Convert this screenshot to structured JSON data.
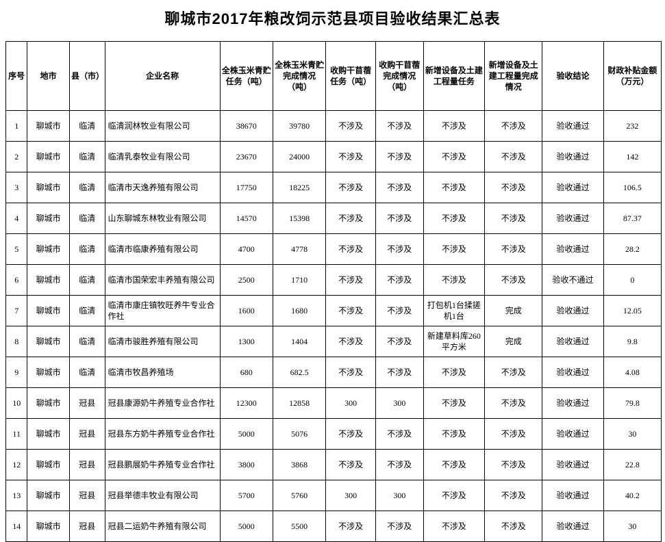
{
  "title": "聊城市2017年粮改饲示范县项目验收结果汇总表",
  "headers": {
    "idx": "序号",
    "city": "地市",
    "county": "县（市）",
    "enterprise": "企业名称",
    "silage_task": "全株玉米青贮任务（吨）",
    "silage_done": "全株玉米青贮完成情况（吨）",
    "hay_task": "收购干苜蓿任务（吨）",
    "hay_done": "收购干苜蓿完成情况（吨）",
    "equip_task": "新增设备及土建工程量任务",
    "equip_done": "新增设备及土建工程量完成情况",
    "result": "验收结论",
    "subsidy": "财政补贴金额（万元）"
  },
  "rows": [
    {
      "idx": "1",
      "city": "聊城市",
      "county": "临清",
      "name": "临清润林牧业有限公司",
      "silage_task": "38670",
      "silage_done": "39780",
      "hay_task": "不涉及",
      "hay_done": "不涉及",
      "equip_task": "不涉及",
      "equip_done": "不涉及",
      "result": "验收通过",
      "subsidy": "232"
    },
    {
      "idx": "2",
      "city": "聊城市",
      "county": "临清",
      "name": "临清乳泰牧业有限公司",
      "silage_task": "23670",
      "silage_done": "24000",
      "hay_task": "不涉及",
      "hay_done": "不涉及",
      "equip_task": "不涉及",
      "equip_done": "不涉及",
      "result": "验收通过",
      "subsidy": "142"
    },
    {
      "idx": "3",
      "city": "聊城市",
      "county": "临清",
      "name": "临清市天逸养殖有限公司",
      "silage_task": "17750",
      "silage_done": "18225",
      "hay_task": "不涉及",
      "hay_done": "不涉及",
      "equip_task": "不涉及",
      "equip_done": "不涉及",
      "result": "验收通过",
      "subsidy": "106.5"
    },
    {
      "idx": "4",
      "city": "聊城市",
      "county": "临清",
      "name": "山东聊城东林牧业有限公司",
      "silage_task": "14570",
      "silage_done": "15398",
      "hay_task": "不涉及",
      "hay_done": "不涉及",
      "equip_task": "不涉及",
      "equip_done": "不涉及",
      "result": "验收通过",
      "subsidy": "87.37"
    },
    {
      "idx": "5",
      "city": "聊城市",
      "county": "临清",
      "name": "临清市临康养殖有限公司",
      "silage_task": "4700",
      "silage_done": "4778",
      "hay_task": "不涉及",
      "hay_done": "不涉及",
      "equip_task": "不涉及",
      "equip_done": "不涉及",
      "result": "验收通过",
      "subsidy": "28.2"
    },
    {
      "idx": "6",
      "city": "聊城市",
      "county": "临清",
      "name": "临清市国荣宏丰养殖有限公司",
      "silage_task": "2500",
      "silage_done": "1710",
      "hay_task": "不涉及",
      "hay_done": "不涉及",
      "equip_task": "不涉及",
      "equip_done": "不涉及",
      "result": "验收不通过",
      "subsidy": "0"
    },
    {
      "idx": "7",
      "city": "聊城市",
      "county": "临清",
      "name": "临清市康庄镇牧旺养牛专业合作社",
      "silage_task": "1600",
      "silage_done": "1680",
      "hay_task": "不涉及",
      "hay_done": "不涉及",
      "equip_task": "打包机1台揉搓机1台",
      "equip_done": "完成",
      "result": "验收通过",
      "subsidy": "12.05"
    },
    {
      "idx": "8",
      "city": "聊城市",
      "county": "临清",
      "name": "临清市骏胜养殖有限公司",
      "silage_task": "1300",
      "silage_done": "1404",
      "hay_task": "不涉及",
      "hay_done": "不涉及",
      "equip_task": "新建草料库260平方米",
      "equip_done": "完成",
      "result": "验收通过",
      "subsidy": "9.8"
    },
    {
      "idx": "9",
      "city": "聊城市",
      "county": "临清",
      "name": "临清市牧昌养殖场",
      "silage_task": "680",
      "silage_done": "682.5",
      "hay_task": "不涉及",
      "hay_done": "不涉及",
      "equip_task": "不涉及",
      "equip_done": "不涉及",
      "result": "验收通过",
      "subsidy": "4.08"
    },
    {
      "idx": "10",
      "city": "聊城市",
      "county": "冠县",
      "name": "冠县康源奶牛养殖专业合作社",
      "silage_task": "12300",
      "silage_done": "12858",
      "hay_task": "300",
      "hay_done": "300",
      "equip_task": "不涉及",
      "equip_done": "不涉及",
      "result": "验收通过",
      "subsidy": "79.8"
    },
    {
      "idx": "11",
      "city": "聊城市",
      "county": "冠县",
      "name": "冠县东方奶牛养殖专业合作社",
      "silage_task": "5000",
      "silage_done": "5076",
      "hay_task": "不涉及",
      "hay_done": "不涉及",
      "equip_task": "不涉及",
      "equip_done": "不涉及",
      "result": "验收通过",
      "subsidy": "30"
    },
    {
      "idx": "12",
      "city": "聊城市",
      "county": "冠县",
      "name": "冠县鹏展奶牛养殖专业合作社",
      "silage_task": "3800",
      "silage_done": "3868",
      "hay_task": "不涉及",
      "hay_done": "不涉及",
      "equip_task": "不涉及",
      "equip_done": "不涉及",
      "result": "验收通过",
      "subsidy": "22.8"
    },
    {
      "idx": "13",
      "city": "聊城市",
      "county": "冠县",
      "name": "冠县举德丰牧业有限公司",
      "silage_task": "5700",
      "silage_done": "5760",
      "hay_task": "300",
      "hay_done": "300",
      "equip_task": "不涉及",
      "equip_done": "不涉及",
      "result": "验收通过",
      "subsidy": "40.2"
    },
    {
      "idx": "14",
      "city": "聊城市",
      "county": "冠县",
      "name": "冠县二运奶牛养殖有限公司",
      "silage_task": "5000",
      "silage_done": "5500",
      "hay_task": "不涉及",
      "hay_done": "不涉及",
      "equip_task": "不涉及",
      "equip_done": "不涉及",
      "result": "验收通过",
      "subsidy": "30"
    }
  ]
}
